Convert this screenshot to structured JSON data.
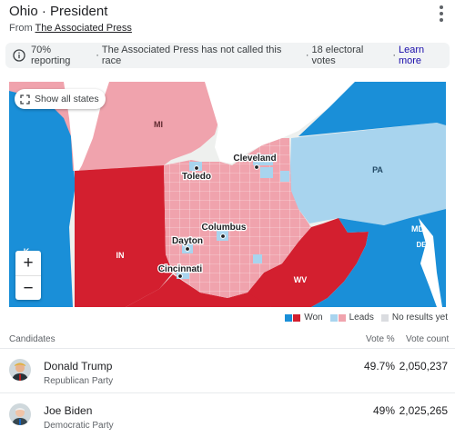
{
  "header": {
    "title": "Ohio · President",
    "source_prefix": "From",
    "source_name": "The Associated Press"
  },
  "notice": {
    "reporting": "70% reporting",
    "not_called": "The Associated Press has not called this race",
    "electoral": "18 electoral votes",
    "learn_more": "Learn more",
    "separator": "·"
  },
  "map": {
    "show_all_label": "Show all states",
    "zoom_in": "+",
    "zoom_out": "−",
    "states": {
      "mi": "MI",
      "pa": "PA",
      "in": "IN",
      "wv": "WV",
      "md": "MD",
      "de": "DE",
      "ky_partial": "K"
    },
    "cities": {
      "cleveland": "Cleveland",
      "toledo": "Toledo",
      "columbus": "Columbus",
      "dayton": "Dayton",
      "cincinnati": "Cincinnati"
    },
    "colors": {
      "dem_won": "#1a8fd8",
      "rep_won": "#d31f2f",
      "dem_leads": "#a8d4ee",
      "rep_leads": "#f0a3ad",
      "no_results": "#dadce0",
      "water": "#ffffff"
    }
  },
  "legend": {
    "won": "Won",
    "leads": "Leads",
    "no_results": "No results yet"
  },
  "table": {
    "col_candidates": "Candidates",
    "col_vote_pct": "Vote %",
    "col_vote_count": "Vote count",
    "candidates": [
      {
        "name": "Donald Trump",
        "party": "Republican Party",
        "pct": "49.7%",
        "votes": "2,050,237"
      },
      {
        "name": "Joe Biden",
        "party": "Democratic Party",
        "pct": "49%",
        "votes": "2,025,265"
      }
    ]
  }
}
